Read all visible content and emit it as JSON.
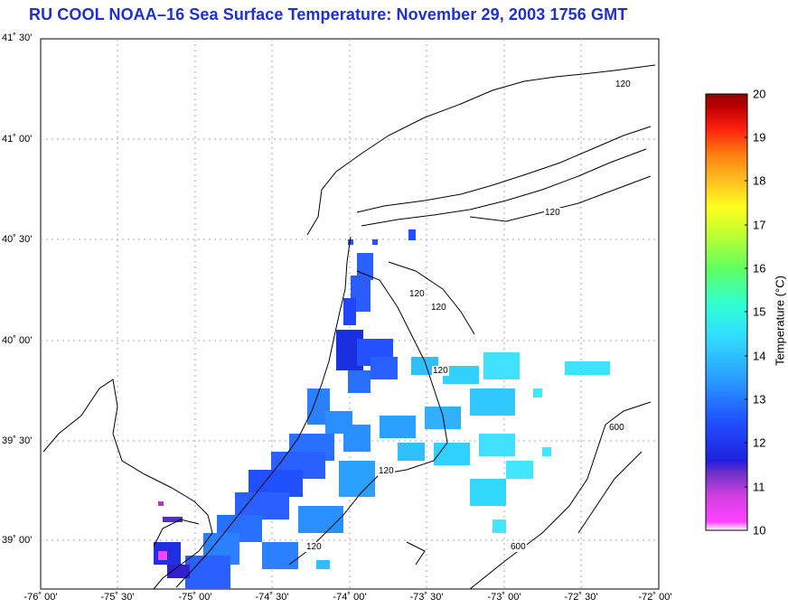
{
  "title": "RU COOL  NOAA–16  Sea Surface Temperature:  November 29, 2003 1756 GMT",
  "lat_labels": [
    "41˚ 30'",
    "41˚ 00'",
    "40˚ 30'",
    "40˚ 00'",
    "39˚ 30'",
    "39˚ 00'"
  ],
  "lon_labels": [
    "-76˚ 00'",
    "-75˚ 30'",
    "-75˚ 00'",
    "-74˚ 30'",
    "-74˚ 00'",
    "-73˚ 30'",
    "-73˚ 00'",
    "-72˚ 30'",
    "-72˚ 00'"
  ],
  "colorbar": {
    "title": "Temperature (°C)",
    "ticks": [
      "20",
      "19",
      "18",
      "17",
      "16",
      "15",
      "14",
      "13",
      "12",
      "11",
      "10"
    ],
    "min": 10,
    "max": 20
  },
  "contour_labels": [
    "120",
    "120",
    "120",
    "120",
    "120",
    "120",
    "120",
    "600",
    "600"
  ],
  "colors": {
    "title": "#1f2fd0",
    "grid": "#aaaaaa",
    "coast": "#000000"
  }
}
